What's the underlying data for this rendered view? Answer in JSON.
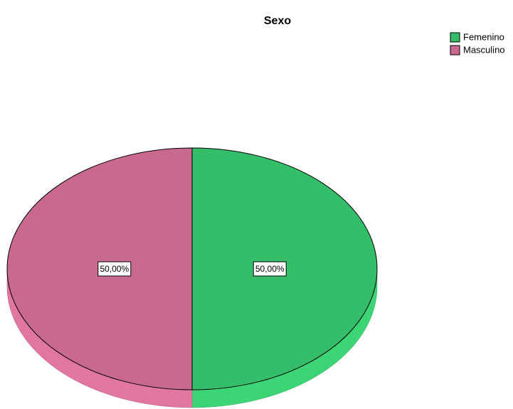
{
  "chart_data": {
    "type": "pie",
    "title": "Sexo",
    "categories": [
      "Femenino",
      "Masculino"
    ],
    "values": [
      50,
      50
    ],
    "value_labels": [
      "50,00%",
      "50,00%"
    ],
    "colors": [
      "#35be69",
      "#c9698f"
    ],
    "legend": "top-right"
  }
}
